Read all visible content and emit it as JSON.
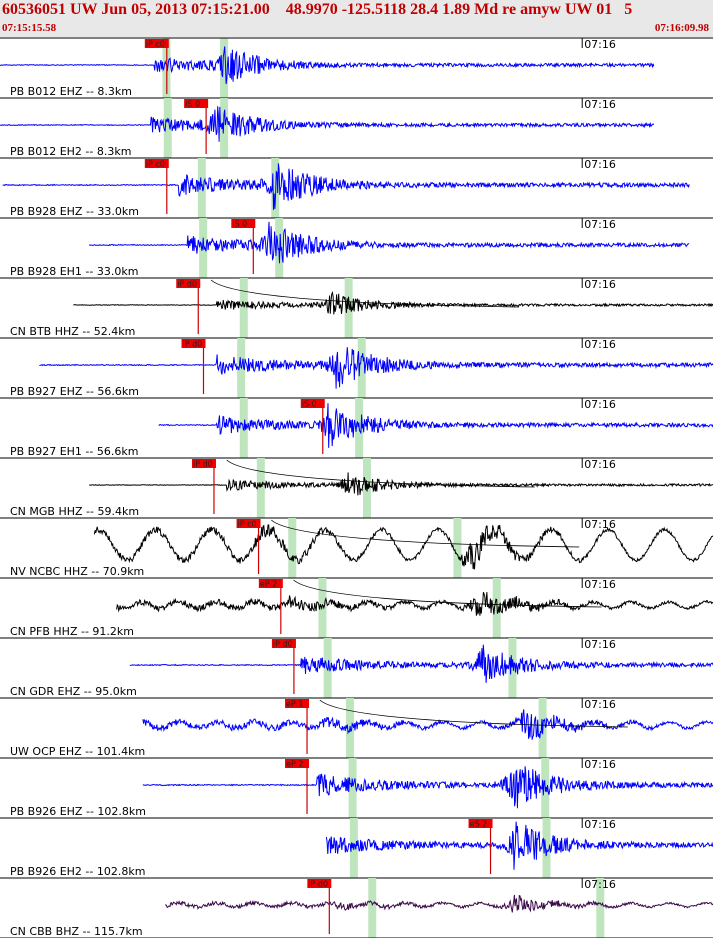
{
  "header": {
    "title": "60536051 UW Jun 05, 2013 07:15:21.00    48.9970 -125.5118 28.4 1.89 Md re amyw UW 01   5",
    "start_time": "07:15:15.58",
    "end_time": "07:16:09.98"
  },
  "colors": {
    "header_bg": "#e8e8e8",
    "header_text": "#c00000",
    "pick_box": "#ee0000",
    "pick_text": "#222222",
    "window_band": "#bfe5bf",
    "trace_blue": "#0000ff",
    "trace_black": "#000000",
    "trace_purple": "#3a0a4a",
    "decay_curve": "#000000",
    "panel_border": "#000000"
  },
  "chart_data": {
    "type": "line",
    "time_range": [
      "07:15:15.58",
      "07:16:09.98"
    ],
    "minute_tick_label": "07:16",
    "traces": [
      {
        "label": "PB B012 EHZ -- 8.3km",
        "color": "blue",
        "pick": "iP c0",
        "pick_time": 11.2,
        "onset": 11.8,
        "strong": 17.1,
        "end": 49.9,
        "amp": 20,
        "bands": [
          12.7,
          17.1
        ],
        "curve": false
      },
      {
        "label": "PB B012 EH2 -- 8.3km",
        "color": "blue",
        "pick": "iS 0",
        "pick_time": 14.2,
        "onset": 11.5,
        "strong": 16.3,
        "end": 49.9,
        "amp": 20,
        "bands": [
          12.8,
          17.1
        ],
        "curve": false
      },
      {
        "label": "PB B928 EHZ -- 33.0km",
        "color": "blue",
        "pick": "iP c0",
        "pick_time": 11.2,
        "onset": 13.6,
        "strong": 20.8,
        "end": 52.6,
        "amp": 26,
        "bands": [
          15.4,
          21.0
        ],
        "curve": false
      },
      {
        "label": "PB B928 EH1 -- 33.0km",
        "color": "blue",
        "pick": "iS 0",
        "pick_time": 17.8,
        "onset": 14.3,
        "strong": 20.5,
        "end": 52.6,
        "amp": 24,
        "bands": [
          15.5,
          21.3
        ],
        "curve": false
      },
      {
        "label": "CN BTB HHZ -- 52.4km",
        "color": "black",
        "pick": "iP d0",
        "pick_time": 13.6,
        "onset": 16.5,
        "strong": 25.1,
        "end": 55.3,
        "amp": 14,
        "bands": [
          18.6,
          26.6
        ],
        "curve": true
      },
      {
        "label": "PB B927 EHZ -- 56.6km",
        "color": "blue",
        "pick": "iP d0",
        "pick_time": 14.0,
        "onset": 16.5,
        "strong": 25.6,
        "end": 56.0,
        "amp": 26,
        "bands": [
          18.4,
          27.6
        ],
        "curve": false
      },
      {
        "label": "PB B927 EH1 -- 56.6km",
        "color": "blue",
        "pick": "iS 0",
        "pick_time": 23.1,
        "onset": 16.5,
        "strong": 25.0,
        "end": 56.0,
        "amp": 24,
        "bands": [
          18.6,
          27.4
        ],
        "curve": false
      },
      {
        "label": "CN MGB HHZ -- 59.4km",
        "color": "black",
        "pick": "iP d0",
        "pick_time": 14.8,
        "onset": 17.3,
        "strong": 26.4,
        "end": 56.6,
        "amp": 14,
        "bands": [
          19.9,
          28.0
        ],
        "curve": true
      },
      {
        "label": "NV NCBC HHZ -- 70.9km",
        "color": "black",
        "pick": "iP c0",
        "pick_time": 18.2,
        "onset": 19.4,
        "strong": 35.6,
        "end": 60.3,
        "amp": 28,
        "bands": [
          22.3,
          34.9
        ],
        "curve": true
      },
      {
        "label": "CN PFB HHZ -- 91.2km",
        "color": "black",
        "pick": "eP 2",
        "pick_time": 19.9,
        "onset": 22.0,
        "strong": 36.3,
        "end": 62.1,
        "amp": 26,
        "bands": [
          24.6,
          37.9
        ],
        "curve": true
      },
      {
        "label": "CN GDR EHZ -- 95.0km",
        "color": "blue",
        "pick": "iP d0",
        "pick_time": 20.9,
        "onset": 22.9,
        "strong": 36.6,
        "end": 63.0,
        "amp": 24,
        "bands": [
          25.0,
          39.1
        ],
        "curve": false
      },
      {
        "label": "UW OCP EHZ -- 101.4km",
        "color": "blue",
        "pick": "eP 1",
        "pick_time": 21.9,
        "onset": 24.1,
        "strong": 39.8,
        "end": 64.2,
        "amp": 26,
        "bands": [
          26.7,
          41.4
        ],
        "curve": true
      },
      {
        "label": "PB B926 EHZ -- 102.8km",
        "color": "blue",
        "pick": "eP 2",
        "pick_time": 21.9,
        "onset": 24.1,
        "strong": 39.0,
        "end": 64.7,
        "amp": 28,
        "bands": [
          26.9,
          41.6
        ],
        "curve": false
      },
      {
        "label": "PB B926 EH2 -- 102.8km",
        "color": "blue",
        "pick": "eS 2",
        "pick_time": 35.9,
        "onset": 24.1,
        "strong": 39.2,
        "end": 64.7,
        "amp": 28,
        "bands": [
          27.0,
          41.7
        ],
        "curve": false
      },
      {
        "label": "CN CBB BHZ -- 115.7km",
        "color": "purple",
        "pick": "iP d0",
        "pick_time": 23.6,
        "onset": 25.6,
        "strong": 39.0,
        "end": 65.3,
        "amp": 16,
        "bands": [
          28.4,
          45.8
        ],
        "curve": false
      }
    ]
  }
}
